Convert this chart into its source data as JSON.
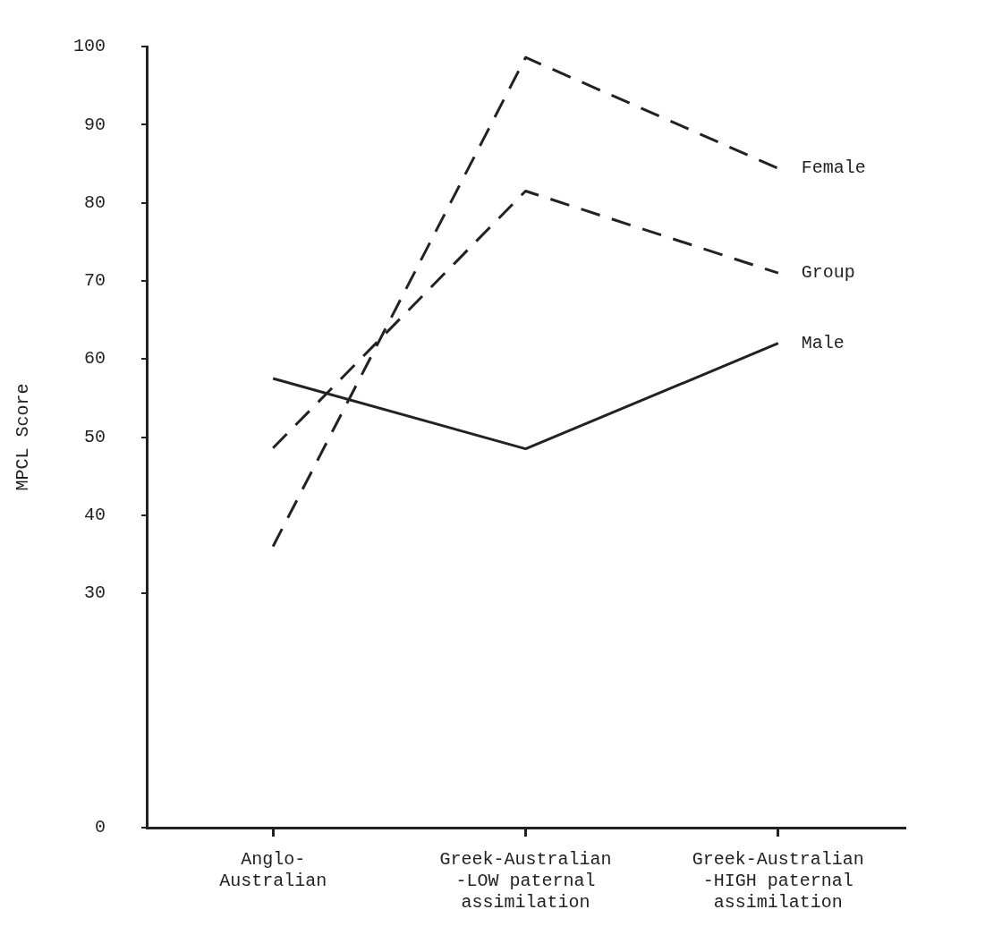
{
  "chart_data": {
    "type": "line",
    "ylabel": "MPCL Score",
    "categories": [
      "Anglo-\nAustralian",
      "Greek-Australian\n-LOW paternal\nassimilation",
      "Greek-Australian\n-HIGH paternal\nassimilation"
    ],
    "series": [
      {
        "name": "Female",
        "color": "#222222",
        "values": [
          36,
          98.6,
          84.4
        ],
        "line_style": "dashed"
      },
      {
        "name": "Group",
        "color": "#222222",
        "values": [
          48.6,
          81.5,
          71
        ],
        "line_style": "dashed"
      },
      {
        "name": "Male",
        "color": "#222222",
        "values": [
          57.5,
          48.5,
          62
        ],
        "line_style": "solid"
      }
    ],
    "ylim": [
      0,
      100
    ],
    "yticks": [
      0,
      30,
      40,
      50,
      60,
      70,
      80,
      90,
      100
    ],
    "grid": false,
    "legend": false,
    "marker": "none"
  }
}
